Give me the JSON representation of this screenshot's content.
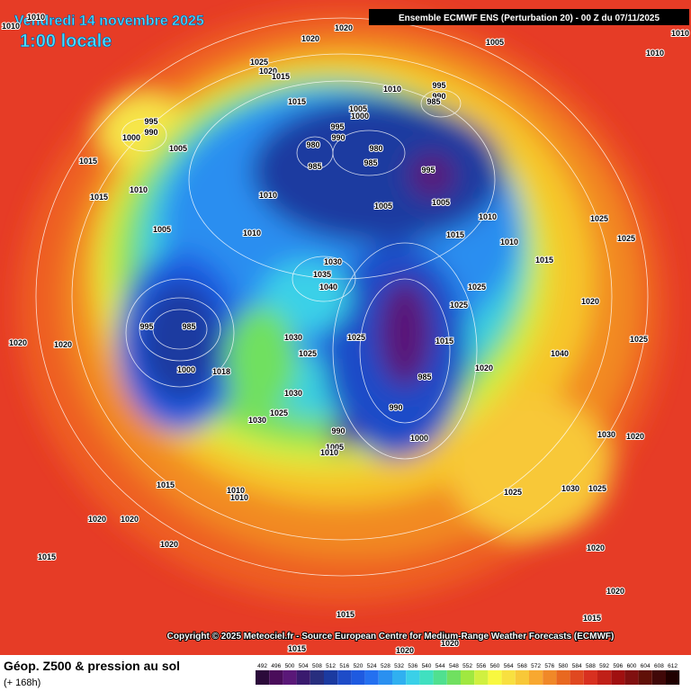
{
  "header": {
    "date": "Vendredi 14 novembre 2025",
    "time": "1:00 locale",
    "source": "Ensemble ECMWF ENS  (Perturbation 20)  - 00 Z du 07/11/2025"
  },
  "copyright": "Copyright © 2025 Meteociel.fr - Source European Centre for Medium-Range Weather Forecasts (ECMWF)",
  "footer": {
    "title": "Géop. Z500 & pression au sol",
    "subtitle": "(+ 168h)"
  },
  "scale": {
    "ticks": [
      492,
      496,
      500,
      504,
      508,
      512,
      516,
      520,
      524,
      528,
      532,
      536,
      540,
      544,
      548,
      552,
      556,
      560,
      564,
      568,
      572,
      576,
      580,
      584,
      588,
      592,
      596,
      600,
      604,
      608,
      612
    ],
    "colors": [
      "#2b0a3a",
      "#4a0d5a",
      "#5a1878",
      "#3a1a6e",
      "#282e7e",
      "#1b3aa0",
      "#1e4cc8",
      "#1e5ae0",
      "#2470f0",
      "#2a90f0",
      "#30b0f0",
      "#3ad0e8",
      "#40e0c0",
      "#50e090",
      "#70e060",
      "#a0e840",
      "#d0f040",
      "#f8f840",
      "#f8e040",
      "#f8c838",
      "#f8a830",
      "#f08828",
      "#e86820",
      "#e04820",
      "#d83020",
      "#c02018",
      "#a01010",
      "#801010",
      "#601008",
      "#400808",
      "#200000"
    ]
  },
  "isobar_labels": [
    1010,
    1010,
    1020,
    1020,
    1005,
    1010,
    1010,
    1025,
    1020,
    1015,
    1010,
    995,
    990,
    985,
    1015,
    1005,
    1000,
    995,
    990,
    980,
    980,
    985,
    985,
    995,
    990,
    1000,
    1005,
    995,
    1015,
    1010,
    1015,
    1005,
    1005,
    1010,
    1010,
    1010,
    1005,
    1015,
    1010,
    1030,
    1035,
    1040,
    1025,
    1025,
    1015,
    1025,
    1025,
    1020,
    995,
    985,
    1020,
    1020,
    1000,
    1018,
    1025,
    1015,
    1030,
    1025,
    1040,
    1020,
    985,
    990,
    1030,
    1025,
    1030,
    990,
    1005,
    1010,
    1000,
    1030,
    1020,
    1015,
    1010,
    1010,
    1025,
    1030,
    1025,
    1020,
    1020,
    1020,
    1015,
    1020,
    1020,
    1015,
    1015,
    1020,
    1015,
    1020,
    1025
  ]
}
